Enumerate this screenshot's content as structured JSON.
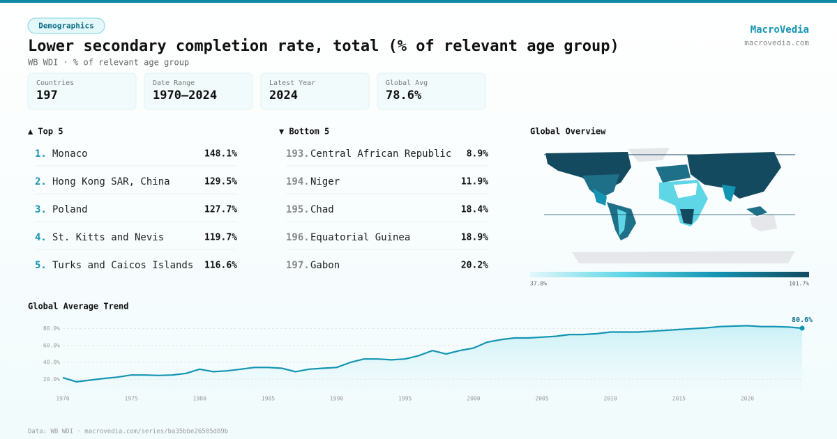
{
  "header": {
    "tag": "Demographics",
    "title": "Lower secondary completion rate, total (% of relevant age group)",
    "subtitle": "WB WDI · % of relevant age group",
    "brand": "MacroVedia",
    "site": "macrovedia.com"
  },
  "stats": [
    {
      "label": "Countries",
      "value": "197"
    },
    {
      "label": "Date Range",
      "value": "1970–2024"
    },
    {
      "label": "Latest Year",
      "value": "2024"
    },
    {
      "label": "Global Avg",
      "value": "78.6%"
    }
  ],
  "top": {
    "title": "▲ Top 5",
    "rows": [
      [
        "1.",
        "Monaco",
        "148.1%"
      ],
      [
        "2.",
        "Hong Kong SAR, China",
        "129.5%"
      ],
      [
        "3.",
        "Poland",
        "127.7%"
      ],
      [
        "4.",
        "St. Kitts and Nevis",
        "119.7%"
      ],
      [
        "5.",
        "Turks and Caicos Islands",
        "116.6%"
      ]
    ]
  },
  "bottom": {
    "title": "▼ Bottom 5",
    "rows": [
      [
        "193.",
        "Central African Republic",
        "8.9%"
      ],
      [
        "194.",
        "Niger",
        "11.9%"
      ],
      [
        "195.",
        "Chad",
        "18.4%"
      ],
      [
        "196.",
        "Equatorial Guinea",
        "18.9%"
      ],
      [
        "197.",
        "Gabon",
        "20.2%"
      ]
    ]
  },
  "map": {
    "title": "Global Overview",
    "min_label": "37.8%",
    "max_label": "101.7%",
    "colors": [
      "#e3f8fb",
      "#5fd6e6",
      "#1494b3",
      "#134a5f"
    ]
  },
  "chart_data": {
    "type": "line",
    "title": "Global Average Trend",
    "color": "#1494b3",
    "x": [
      1970,
      1971,
      1972,
      1973,
      1974,
      1975,
      1976,
      1977,
      1978,
      1979,
      1980,
      1981,
      1982,
      1983,
      1984,
      1985,
      1986,
      1987,
      1988,
      1989,
      1990,
      1991,
      1992,
      1993,
      1994,
      1995,
      1996,
      1997,
      1998,
      1999,
      2000,
      2001,
      2002,
      2003,
      2004,
      2005,
      2006,
      2007,
      2008,
      2009,
      2010,
      2011,
      2012,
      2013,
      2014,
      2015,
      2016,
      2017,
      2018,
      2019,
      2020,
      2021,
      2022,
      2023,
      2024
    ],
    "values": [
      22,
      17,
      19,
      21,
      22.5,
      25,
      25,
      24.5,
      25,
      27,
      32,
      29,
      30,
      32,
      34,
      34,
      33,
      29,
      32,
      33,
      34,
      40,
      44,
      44,
      43,
      44,
      48,
      54,
      50,
      54,
      57,
      64,
      67,
      69,
      69,
      70,
      71,
      73,
      73,
      74,
      76,
      76,
      76,
      77,
      78,
      79,
      80,
      81,
      82.5,
      83,
      83.5,
      82.5,
      82.5,
      82,
      80.6
    ],
    "end_label": "80.6%",
    "xlim": [
      1970,
      2024
    ],
    "xticks": [
      1970,
      1975,
      1980,
      1985,
      1990,
      1995,
      2000,
      2005,
      2010,
      2015,
      2020
    ],
    "ylim": [
      7,
      88
    ],
    "yticks": [
      {
        "value": 20,
        "label": "20.0%"
      },
      {
        "value": 40,
        "label": "40.0%"
      },
      {
        "value": 60,
        "label": "60.0%"
      },
      {
        "value": 80,
        "label": "80.0%"
      }
    ],
    "grid": true
  },
  "footer": "Data: WB WDI · macrovedia.com/series/ba35bbe26505d89b"
}
